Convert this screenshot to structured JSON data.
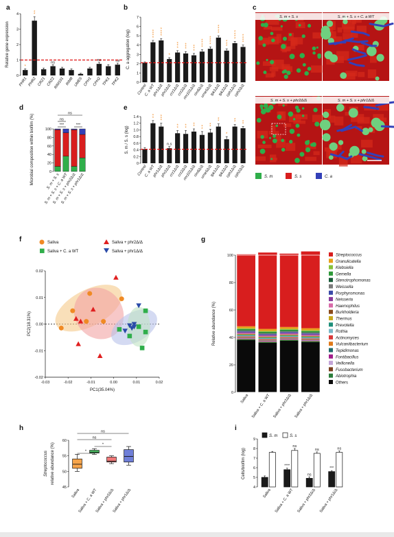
{
  "figure": {
    "panel_letters": [
      "a",
      "b",
      "c",
      "d",
      "e",
      "f",
      "g",
      "h",
      "i"
    ],
    "colors": {
      "streptococcus": "#d81e1e",
      "sm": "#2fae4a",
      "sm_light": "#6fd07f",
      "ca": "#3340b8",
      "saliva_orange": "#f08a24",
      "wt_green": "#2fae4a",
      "phr2_red": "#e02020",
      "phr1_blue": "#2a4aa8",
      "threshold": "#e01010",
      "bar": "#1a1a1a",
      "sig_orange": "#f08a24",
      "sig_blue": "#3a7dc8"
    }
  },
  "panel_c": {
    "titles": [
      "S. m + S. s",
      "S. m + S. s + C. a WT",
      "S. m + S. s + phr2Δ/Δ",
      "S. m + S. s + phr1Δ/Δ"
    ],
    "legend": [
      {
        "label": "S. m",
        "color": "#2fae4a"
      },
      {
        "label": "S. s",
        "color": "#d81e1e"
      },
      {
        "label": "C. a",
        "color": "#3340b8"
      }
    ]
  },
  "chart_data": [
    {
      "panel": "a",
      "type": "bar",
      "ylabel": "Relative gene expression",
      "ylim": [
        0,
        4
      ],
      "yticks": [
        "0",
        "1",
        "2",
        "3",
        "4"
      ],
      "categories": [
        "PHR1",
        "PHR2",
        "CRZ1",
        "CRZ2",
        "RIM101",
        "RIM8",
        "UME6",
        "CPH1",
        "CPH2",
        "TPK1",
        "TPK2"
      ],
      "values": [
        0.35,
        3.55,
        0.4,
        0.6,
        0.45,
        0.35,
        0.1,
        0.45,
        0.75,
        0.6,
        0.7
      ],
      "errors": [
        0.08,
        0.25,
        0.08,
        0.1,
        0.08,
        0.08,
        0.04,
        0.08,
        0.1,
        0.1,
        0.1
      ],
      "annotations": [
        "*",
        "**",
        "",
        "ns",
        "",
        "",
        "",
        "",
        "ns",
        "",
        "ns"
      ],
      "reference_line": 1
    },
    {
      "panel": "b",
      "type": "bar",
      "ylabel": "C. a aggregation (log)",
      "ylim": [
        0,
        7
      ],
      "yticks": [
        "0",
        "1",
        "2",
        "3",
        "4",
        "5",
        "6",
        "7"
      ],
      "categories": [
        "Control",
        "C. a WT",
        "phr1Δ/Δ",
        "phr2Δ/Δ",
        "crz1Δ/Δ",
        "crz2Δ/Δ",
        "rim101Δ/Δ",
        "rim8Δ/Δ",
        "ume6Δ/Δ",
        "tpk1Δ/Δ",
        "tpk2Δ/Δ",
        "cph1Δ/Δ",
        "cph2Δ/Δ"
      ],
      "values": [
        2.1,
        4.3,
        4.5,
        2.5,
        3.2,
        3.1,
        2.9,
        3.3,
        3.6,
        4.8,
        3.4,
        4.2,
        3.8
      ],
      "errors": [
        0.1,
        0.2,
        0.2,
        0.15,
        0.2,
        0.2,
        0.2,
        0.2,
        0.2,
        0.2,
        0.2,
        0.2,
        0.2
      ],
      "annotations": [
        "",
        "****",
        "****",
        "*",
        "***",
        "***",
        "***",
        "****",
        "****",
        "****",
        "***",
        "****",
        "****"
      ],
      "reference_line": 2.1
    },
    {
      "panel": "d",
      "type": "bar",
      "stacked": true,
      "ylabel": "Microbial composition within biofilm (%)",
      "ylim": [
        0,
        100
      ],
      "yticks": [
        "0",
        "20",
        "40",
        "60",
        "80",
        "100"
      ],
      "categories": [
        "S. m + S. s",
        "S. m + S. s + C. a WT",
        "S. m + S. s + phr2Δ/Δ",
        "S. m + S. s + phr1Δ/Δ"
      ],
      "series": [
        {
          "name": "S. m",
          "values": [
            12,
            36,
            12,
            32
          ]
        },
        {
          "name": "S. s",
          "values": [
            86,
            55,
            86,
            55
          ]
        },
        {
          "name": "C. a",
          "values": [
            2,
            9,
            2,
            13
          ]
        }
      ],
      "comparisons": [
        "ns",
        "ns",
        "***",
        "***"
      ]
    },
    {
      "panel": "e",
      "type": "bar",
      "ylabel": "S. m / S. s (log)",
      "ylim": [
        0,
        1.4
      ],
      "yticks": [
        "0",
        "0.2",
        "0.4",
        "0.6",
        "0.8",
        "1.0",
        "1.2",
        "1.4"
      ],
      "categories": [
        "Control",
        "C. a WT",
        "phr1Δ/Δ",
        "phr2Δ/Δ",
        "crz1Δ/Δ",
        "crz2Δ/Δ",
        "rim101Δ/Δ",
        "rim8Δ/Δ",
        "ume6Δ/Δ",
        "tpk1Δ/Δ",
        "tpk2Δ/Δ",
        "cph1Δ/Δ",
        "cph2Δ/Δ"
      ],
      "values": [
        0.42,
        1.2,
        1.1,
        0.45,
        0.9,
        0.88,
        0.95,
        0.85,
        0.92,
        1.1,
        0.72,
        1.1,
        1.05
      ],
      "errors": [
        0.05,
        0.08,
        0.1,
        0.05,
        0.08,
        0.1,
        0.08,
        0.1,
        0.1,
        0.08,
        0.08,
        0.06,
        0.05
      ],
      "annotations": [
        "",
        "**",
        "***",
        "n.s",
        "**",
        "**",
        "**",
        "**",
        "**",
        "**",
        "*",
        "**",
        "**"
      ],
      "reference_line": 0.42
    },
    {
      "panel": "f",
      "type": "scatter",
      "xlabel": "PC1(35.04%)",
      "ylabel": "PC2(18.31%)",
      "xlim": [
        -0.03,
        0.02
      ],
      "ylim": [
        -0.02,
        0.02
      ],
      "xticks": [
        "-0.03",
        "-0.02",
        "-0.01",
        "0.00",
        "0.01",
        "0.02"
      ],
      "yticks": [
        "-0.02",
        "-0.01",
        "0.00",
        "0.01",
        "0.02"
      ],
      "series": [
        {
          "name": "Saliva",
          "points": [
            [
              -0.0105,
              0.0115
            ],
            [
              -0.018,
              0.005
            ],
            [
              -0.023,
              -0.0015
            ],
            [
              -0.012,
              0.001
            ],
            [
              -0.0045,
              0.001
            ],
            [
              0.0035,
              0.0095
            ]
          ]
        },
        {
          "name": "Saliva + C. a WT",
          "points": [
            [
              0.014,
              0.005
            ],
            [
              0.011,
              -0.001
            ],
            [
              0.014,
              -0.003
            ],
            [
              0.0025,
              -0.002
            ],
            [
              0.007,
              -0.0045
            ],
            [
              0.0125,
              -0.009
            ]
          ]
        },
        {
          "name": "Saliva + phr2Δ/Δ",
          "points": [
            [
              0.001,
              0.0175
            ],
            [
              -0.0165,
              0.002
            ],
            [
              -0.0145,
              0.001
            ],
            [
              -0.009,
              0.0055
            ],
            [
              -0.0155,
              -0.0075
            ],
            [
              -0.006,
              -0.012
            ]
          ]
        },
        {
          "name": "Saliva + phr1Δ/Δ",
          "points": [
            [
              0.011,
              0.007
            ],
            [
              0.009,
              0.0
            ],
            [
              0.007,
              -0.0005
            ],
            [
              0.009,
              -0.001
            ],
            [
              0.005,
              -0.0025
            ],
            [
              0.008,
              -0.0015
            ]
          ]
        }
      ]
    },
    {
      "panel": "g",
      "type": "bar",
      "stacked": true,
      "ylabel": "Relative abundance (%)",
      "ylim": [
        0,
        100
      ],
      "yticks": [
        "0",
        "20",
        "40",
        "60",
        "80",
        "100"
      ],
      "categories": [
        "Saliva",
        "Saliva + C. a WT",
        "Saliva + phr2Δ/Δ",
        "Saliva + phr1Δ/Δ"
      ],
      "series": [
        {
          "name": "Others",
          "values": [
            38,
            36,
            37.5,
            36.5
          ]
        },
        {
          "name": "Abiotrophia",
          "values": [
            0.5,
            0.5,
            0.5,
            0.5
          ]
        },
        {
          "name": "Fusobacterium",
          "values": [
            0.4,
            0.4,
            0.4,
            0.4
          ]
        },
        {
          "name": "Veillonella",
          "values": [
            0.4,
            0.4,
            0.4,
            0.4
          ]
        },
        {
          "name": "Fontibacillus",
          "values": [
            0.3,
            0.3,
            0.3,
            0.3
          ]
        },
        {
          "name": "Tepidimonas",
          "values": [
            0.3,
            0.3,
            0.3,
            0.3
          ]
        },
        {
          "name": "Vulcaniibacterium",
          "values": [
            0.3,
            0.3,
            0.3,
            0.3
          ]
        },
        {
          "name": "Actinomyces",
          "values": [
            0.5,
            0.5,
            0.5,
            0.5
          ]
        },
        {
          "name": "Rothia",
          "values": [
            0.6,
            0.6,
            0.6,
            0.6
          ]
        },
        {
          "name": "Prevotella",
          "values": [
            0.6,
            0.6,
            0.6,
            0.6
          ]
        },
        {
          "name": "Thermus",
          "values": [
            0.4,
            0.4,
            0.4,
            0.4
          ]
        },
        {
          "name": "Burkholderia",
          "values": [
            0.3,
            0.3,
            0.3,
            0.3
          ]
        },
        {
          "name": "Haemophilus",
          "values": [
            0.6,
            0.6,
            0.6,
            0.6
          ]
        },
        {
          "name": "Neisseria",
          "values": [
            0.6,
            0.6,
            0.6,
            0.6
          ]
        },
        {
          "name": "Porphyromonas",
          "values": [
            0.6,
            0.6,
            0.6,
            0.6
          ]
        },
        {
          "name": "Weissella",
          "values": [
            0.5,
            0.5,
            0.5,
            0.5
          ]
        },
        {
          "name": "Stenotrophomonas",
          "values": [
            0.4,
            0.4,
            0.4,
            0.4
          ]
        },
        {
          "name": "Gemella",
          "values": [
            0.8,
            0.8,
            0.8,
            0.8
          ]
        },
        {
          "name": "Klebsiella",
          "values": [
            0.6,
            0.6,
            0.6,
            0.6
          ]
        },
        {
          "name": "Granulicatella",
          "values": [
            1.4,
            1.5,
            1.4,
            1.5
          ]
        },
        {
          "name": "Streptococcus",
          "values": [
            52.5,
            55.7,
            53.5,
            56.0
          ]
        }
      ]
    },
    {
      "panel": "h",
      "type": "box",
      "ylabel": "Streptococcus relative abundance (%)",
      "ylim": [
        45,
        60
      ],
      "yticks": [
        "45",
        "50",
        "55",
        "60"
      ],
      "categories": [
        "Saliva",
        "Saliva + C. a WT",
        "Saliva + phr2Δ/Δ",
        "Saliva + phr1Δ/Δ"
      ],
      "boxes": [
        {
          "min": 50.0,
          "q1": 51.0,
          "median": 52.3,
          "q3": 54.0,
          "max": 55.5
        },
        {
          "min": 55.5,
          "q1": 55.9,
          "median": 56.2,
          "q3": 56.8,
          "max": 57.3
        },
        {
          "min": 52.5,
          "q1": 53.0,
          "median": 53.3,
          "q3": 54.6,
          "max": 55.0
        },
        {
          "min": 52.0,
          "q1": 53.0,
          "median": 54.8,
          "q3": 57.0,
          "max": 58.0
        }
      ],
      "comparisons": [
        "*",
        "*",
        "ns",
        "ns"
      ]
    },
    {
      "panel": "i",
      "type": "bar",
      "ylabel": "Cells/biofilm (log)",
      "ylim": [
        4,
        9
      ],
      "yticks": [
        "4",
        "5",
        "6",
        "7",
        "8",
        "9"
      ],
      "categories": [
        "Saliva",
        "Saliva + C. a WT",
        "Saliva + phr2Δ/Δ",
        "Saliva + phr1Δ/Δ"
      ],
      "series": [
        {
          "name": "S. m",
          "values": [
            5.0,
            5.8,
            4.9,
            5.6
          ],
          "errors": [
            0.15,
            0.15,
            0.15,
            0.1
          ],
          "annotations": [
            "",
            "****",
            "ns",
            "***"
          ]
        },
        {
          "name": "S. s",
          "values": [
            7.6,
            7.8,
            7.5,
            7.6
          ],
          "errors": [
            0.1,
            0.2,
            0.15,
            0.15
          ],
          "annotations": [
            "",
            "ns",
            "ns",
            "ns"
          ]
        }
      ]
    }
  ]
}
